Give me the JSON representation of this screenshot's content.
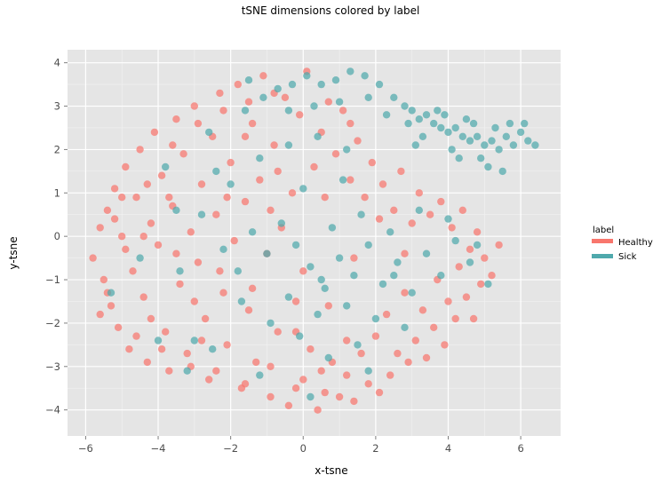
{
  "chart_data": {
    "type": "scatter",
    "title": "tSNE dimensions colored by label",
    "xlabel": "x-tsne",
    "ylabel": "y-tsne",
    "xlim": [
      -6.5,
      7.1
    ],
    "ylim": [
      -4.6,
      4.3
    ],
    "xticks": [
      -6,
      -4,
      -2,
      0,
      2,
      4,
      6
    ],
    "yticks": [
      -4,
      -3,
      -2,
      -1,
      0,
      1,
      2,
      3,
      4
    ],
    "xtick_labels": [
      "−6",
      "−4",
      "−2",
      "0",
      "2",
      "4",
      "6"
    ],
    "ytick_labels": [
      "−4",
      "−3",
      "−2",
      "−1",
      "0",
      "1",
      "2",
      "3",
      "4"
    ],
    "grid": true,
    "legend": {
      "title": "label",
      "placement": "right",
      "entries": [
        {
          "label": "Healthy",
          "color": "#F8766D"
        },
        {
          "label": "Sick",
          "color": "#4FA9AC"
        }
      ]
    },
    "series": [
      {
        "name": "Healthy",
        "color": "#F8766D",
        "points": [
          [
            -5.8,
            -0.5
          ],
          [
            -5.6,
            0.2
          ],
          [
            -5.5,
            -1.0
          ],
          [
            -5.4,
            0.6
          ],
          [
            -5.3,
            -1.6
          ],
          [
            -5.2,
            1.1
          ],
          [
            -5.1,
            -2.1
          ],
          [
            -5.0,
            0.0
          ],
          [
            -4.9,
            1.6
          ],
          [
            -4.8,
            -2.6
          ],
          [
            -4.7,
            -0.8
          ],
          [
            -4.6,
            0.9
          ],
          [
            -4.5,
            2.0
          ],
          [
            -4.4,
            -1.4
          ],
          [
            -4.3,
            -2.9
          ],
          [
            -4.2,
            0.3
          ],
          [
            -4.1,
            2.4
          ],
          [
            -4.0,
            -0.2
          ],
          [
            -3.9,
            1.4
          ],
          [
            -3.8,
            -2.2
          ],
          [
            -3.7,
            -3.1
          ],
          [
            -3.6,
            0.7
          ],
          [
            -3.5,
            2.7
          ],
          [
            -3.4,
            -1.1
          ],
          [
            -3.3,
            1.9
          ],
          [
            -3.2,
            -2.7
          ],
          [
            -3.1,
            0.1
          ],
          [
            -3.0,
            3.0
          ],
          [
            -2.9,
            -0.6
          ],
          [
            -2.8,
            1.2
          ],
          [
            -2.7,
            -1.9
          ],
          [
            -2.6,
            -3.3
          ],
          [
            -2.5,
            2.3
          ],
          [
            -2.4,
            0.5
          ],
          [
            -2.3,
            3.3
          ],
          [
            -2.2,
            -1.3
          ],
          [
            -2.1,
            -2.5
          ],
          [
            -2.0,
            1.7
          ],
          [
            -1.9,
            -0.1
          ],
          [
            -1.8,
            3.5
          ],
          [
            -1.7,
            -3.5
          ],
          [
            -1.6,
            0.8
          ],
          [
            -1.5,
            -1.7
          ],
          [
            -1.4,
            2.6
          ],
          [
            -1.3,
            -2.9
          ],
          [
            -1.2,
            1.3
          ],
          [
            -1.1,
            3.7
          ],
          [
            -1.0,
            -0.4
          ],
          [
            -0.9,
            -3.7
          ],
          [
            -0.8,
            2.1
          ],
          [
            -0.7,
            -2.2
          ],
          [
            -0.6,
            0.2
          ],
          [
            -0.5,
            3.2
          ],
          [
            -0.4,
            -3.9
          ],
          [
            -0.3,
            1.0
          ],
          [
            -0.2,
            -1.5
          ],
          [
            -0.1,
            2.8
          ],
          [
            0.0,
            -3.3
          ],
          [
            0.1,
            3.8
          ],
          [
            0.2,
            -2.6
          ],
          [
            0.3,
            1.6
          ],
          [
            0.4,
            -4.0
          ],
          [
            0.5,
            2.4
          ],
          [
            0.6,
            -3.6
          ],
          [
            0.7,
            3.1
          ],
          [
            0.8,
            -2.9
          ],
          [
            0.9,
            1.9
          ],
          [
            1.0,
            -3.7
          ],
          [
            1.1,
            2.9
          ],
          [
            1.2,
            -3.2
          ],
          [
            1.3,
            1.3
          ],
          [
            1.4,
            -3.8
          ],
          [
            1.5,
            2.2
          ],
          [
            1.6,
            -2.7
          ],
          [
            1.7,
            0.9
          ],
          [
            1.8,
            -3.4
          ],
          [
            1.9,
            1.7
          ],
          [
            2.0,
            -2.3
          ],
          [
            2.1,
            -3.6
          ],
          [
            2.2,
            1.2
          ],
          [
            2.3,
            -1.8
          ],
          [
            2.4,
            -3.2
          ],
          [
            2.5,
            0.6
          ],
          [
            2.6,
            -2.7
          ],
          [
            2.7,
            1.5
          ],
          [
            2.8,
            -1.3
          ],
          [
            2.9,
            -2.9
          ],
          [
            3.0,
            0.3
          ],
          [
            3.1,
            -2.4
          ],
          [
            3.2,
            1.0
          ],
          [
            3.3,
            -1.7
          ],
          [
            3.4,
            -2.8
          ],
          [
            3.5,
            0.5
          ],
          [
            3.6,
            -2.1
          ],
          [
            3.7,
            -1.0
          ],
          [
            3.8,
            0.8
          ],
          [
            3.9,
            -2.5
          ],
          [
            4.0,
            -1.5
          ],
          [
            4.1,
            0.2
          ],
          [
            4.2,
            -1.9
          ],
          [
            4.3,
            -0.7
          ],
          [
            4.4,
            0.6
          ],
          [
            4.5,
            -1.4
          ],
          [
            4.6,
            -0.3
          ],
          [
            4.7,
            -1.9
          ],
          [
            4.8,
            0.1
          ],
          [
            4.9,
            -1.1
          ],
          [
            5.0,
            -0.5
          ],
          [
            5.2,
            -0.9
          ],
          [
            5.4,
            -0.2
          ],
          [
            -5.6,
            -1.8
          ],
          [
            -4.9,
            -0.3
          ],
          [
            -4.2,
            -1.9
          ],
          [
            -3.5,
            -0.4
          ],
          [
            -2.8,
            -2.4
          ],
          [
            -2.1,
            0.9
          ],
          [
            -1.4,
            -1.2
          ],
          [
            -0.7,
            1.5
          ],
          [
            0.0,
            -0.8
          ],
          [
            0.7,
            -1.6
          ],
          [
            1.4,
            -0.5
          ],
          [
            2.1,
            0.4
          ],
          [
            2.8,
            -0.4
          ],
          [
            -5.0,
            0.9
          ],
          [
            -4.3,
            1.2
          ],
          [
            -3.6,
            2.1
          ],
          [
            -2.9,
            2.6
          ],
          [
            -2.2,
            2.9
          ],
          [
            -1.5,
            3.1
          ],
          [
            -0.8,
            3.3
          ],
          [
            -5.4,
            -1.3
          ],
          [
            -4.6,
            -2.3
          ],
          [
            -3.9,
            -2.6
          ],
          [
            -3.1,
            -3.0
          ],
          [
            -2.4,
            -3.1
          ],
          [
            -1.6,
            -3.4
          ],
          [
            -0.9,
            -3.0
          ],
          [
            -0.2,
            -3.5
          ],
          [
            0.5,
            -3.1
          ],
          [
            1.2,
            -2.4
          ],
          [
            -5.2,
            0.4
          ],
          [
            -4.4,
            0.0
          ],
          [
            -3.7,
            0.9
          ],
          [
            -3.0,
            -1.5
          ],
          [
            -2.3,
            -0.8
          ],
          [
            -1.6,
            2.3
          ],
          [
            -0.9,
            0.6
          ],
          [
            -0.2,
            -2.2
          ],
          [
            0.6,
            0.9
          ],
          [
            1.3,
            2.6
          ]
        ]
      },
      {
        "name": "Sick",
        "color": "#4FA9AC",
        "points": [
          [
            2.8,
            3.0
          ],
          [
            3.0,
            2.9
          ],
          [
            3.2,
            2.7
          ],
          [
            3.4,
            2.8
          ],
          [
            3.6,
            2.6
          ],
          [
            3.8,
            2.5
          ],
          [
            4.0,
            2.4
          ],
          [
            4.2,
            2.5
          ],
          [
            4.4,
            2.3
          ],
          [
            4.6,
            2.2
          ],
          [
            4.8,
            2.3
          ],
          [
            5.0,
            2.1
          ],
          [
            5.2,
            2.2
          ],
          [
            5.4,
            2.0
          ],
          [
            5.6,
            2.3
          ],
          [
            5.8,
            2.1
          ],
          [
            6.0,
            2.4
          ],
          [
            6.2,
            2.2
          ],
          [
            6.4,
            2.1
          ],
          [
            5.7,
            2.6
          ],
          [
            5.3,
            2.5
          ],
          [
            4.9,
            1.8
          ],
          [
            4.5,
            2.7
          ],
          [
            4.1,
            2.0
          ],
          [
            3.7,
            2.9
          ],
          [
            3.3,
            2.3
          ],
          [
            2.9,
            2.6
          ],
          [
            2.5,
            3.2
          ],
          [
            2.1,
            3.5
          ],
          [
            1.7,
            3.7
          ],
          [
            1.3,
            3.8
          ],
          [
            0.9,
            3.6
          ],
          [
            0.5,
            3.5
          ],
          [
            0.1,
            3.7
          ],
          [
            -0.3,
            3.5
          ],
          [
            -0.7,
            3.4
          ],
          [
            -1.1,
            3.2
          ],
          [
            -1.5,
            3.6
          ],
          [
            3.1,
            2.1
          ],
          [
            4.3,
            1.8
          ],
          [
            5.1,
            1.6
          ],
          [
            5.5,
            1.5
          ],
          [
            3.9,
            2.8
          ],
          [
            4.7,
            2.6
          ],
          [
            6.1,
            2.6
          ],
          [
            1.8,
            3.2
          ],
          [
            2.3,
            2.8
          ],
          [
            1.0,
            3.1
          ],
          [
            0.3,
            3.0
          ],
          [
            -0.4,
            2.9
          ],
          [
            1.0,
            -0.5
          ],
          [
            1.4,
            -0.9
          ],
          [
            1.8,
            -0.2
          ],
          [
            2.2,
            -1.1
          ],
          [
            2.6,
            -0.6
          ],
          [
            3.0,
            -1.3
          ],
          [
            3.4,
            -0.4
          ],
          [
            3.8,
            -0.9
          ],
          [
            4.2,
            -0.1
          ],
          [
            4.6,
            -0.6
          ],
          [
            0.6,
            -1.2
          ],
          [
            0.2,
            -0.7
          ],
          [
            -0.2,
            -0.2
          ],
          [
            -0.6,
            0.3
          ],
          [
            -1.0,
            -0.4
          ],
          [
            -1.4,
            0.1
          ],
          [
            -1.8,
            -0.8
          ],
          [
            -2.2,
            -0.3
          ],
          [
            0.8,
            0.2
          ],
          [
            1.6,
            0.5
          ],
          [
            2.4,
            0.1
          ],
          [
            3.2,
            0.6
          ],
          [
            4.0,
            0.4
          ],
          [
            4.8,
            -0.2
          ],
          [
            5.1,
            -1.1
          ],
          [
            1.2,
            -1.6
          ],
          [
            2.0,
            -1.9
          ],
          [
            2.8,
            -2.1
          ],
          [
            0.4,
            -1.8
          ],
          [
            -0.4,
            -1.4
          ],
          [
            1.5,
            -2.5
          ],
          [
            0.7,
            -2.8
          ],
          [
            -0.1,
            -2.3
          ],
          [
            -0.9,
            -2.0
          ],
          [
            -1.7,
            -1.5
          ],
          [
            -2.5,
            -2.6
          ],
          [
            -3.0,
            -2.4
          ],
          [
            -1.2,
            -3.2
          ],
          [
            0.2,
            -3.7
          ],
          [
            1.8,
            -3.1
          ],
          [
            -3.4,
            -0.8
          ],
          [
            -2.8,
            0.5
          ],
          [
            -2.0,
            1.2
          ],
          [
            -1.2,
            1.8
          ],
          [
            -0.4,
            2.1
          ],
          [
            0.4,
            2.3
          ],
          [
            1.2,
            2.0
          ],
          [
            -2.6,
            2.4
          ],
          [
            -3.8,
            1.6
          ],
          [
            -4.5,
            -0.5
          ],
          [
            -4.0,
            -2.4
          ],
          [
            -3.2,
            -3.1
          ],
          [
            -5.3,
            -1.3
          ],
          [
            -2.4,
            1.5
          ],
          [
            0.0,
            1.1
          ],
          [
            1.1,
            1.3
          ],
          [
            -1.6,
            2.9
          ],
          [
            -3.5,
            0.6
          ],
          [
            0.5,
            -1.0
          ],
          [
            2.5,
            -0.9
          ]
        ]
      }
    ]
  }
}
